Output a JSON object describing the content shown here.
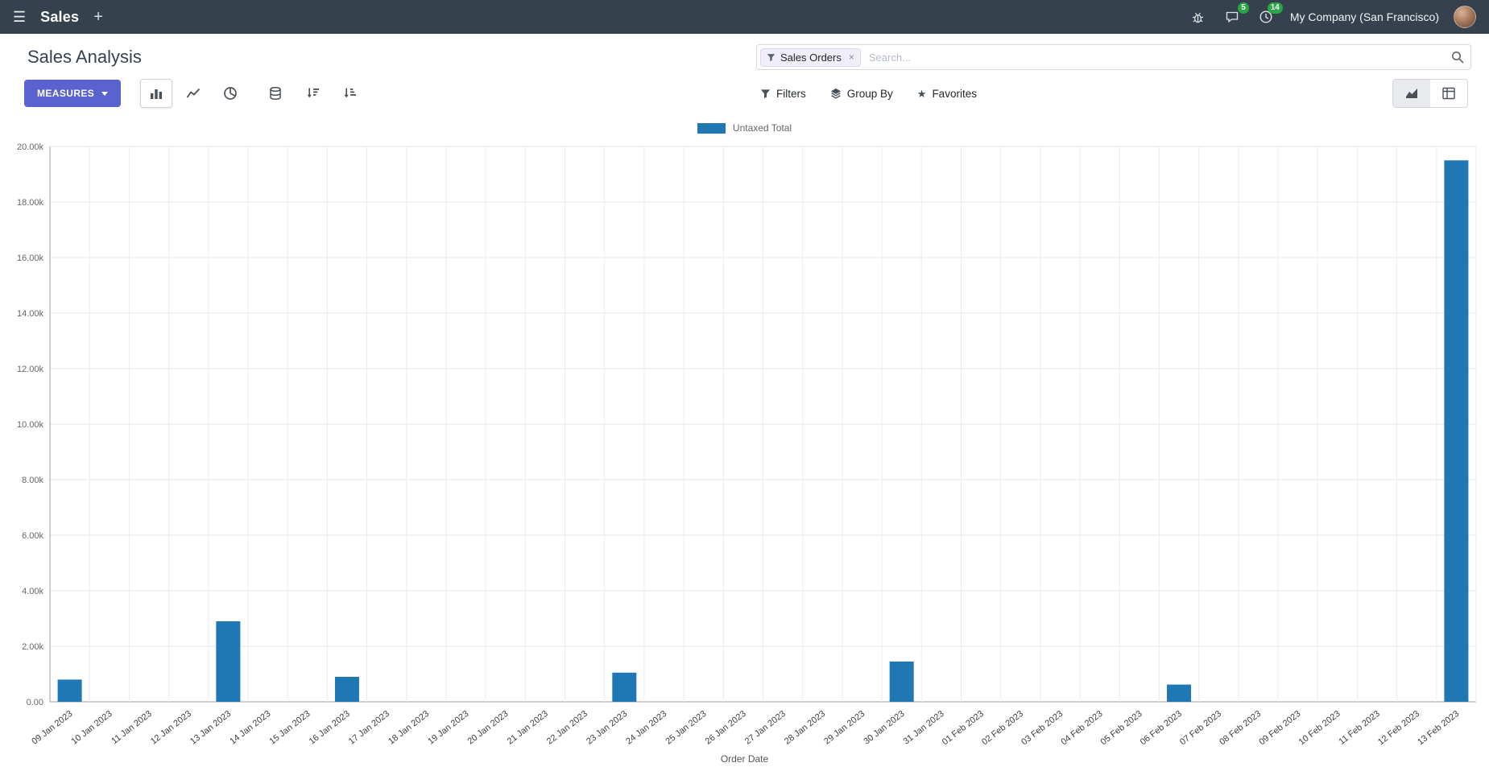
{
  "icons": {
    "hamburger": "☰",
    "plus": "+",
    "star": "★",
    "facet_close": "×"
  },
  "colors": {
    "navbar_bg": "#35424d",
    "accent": "#5a62cf",
    "badge_green": "#28a745",
    "bar": "#1f77b4"
  },
  "navbar": {
    "app_name": "Sales",
    "messages_count": "5",
    "activities_count": "14",
    "company": "My Company (San Francisco)"
  },
  "control_panel": {
    "title": "Sales Analysis",
    "measures_label": "MEASURES",
    "search": {
      "facet": "Sales Orders",
      "placeholder": "Search..."
    },
    "filters_label": "Filters",
    "group_by_label": "Group By",
    "favorites_label": "Favorites"
  },
  "chart_data": {
    "type": "bar",
    "title": "",
    "xlabel": "Order Date",
    "ylabel": "",
    "ylim": [
      0,
      20000
    ],
    "ytick_step": 2000,
    "ytick_labels": [
      "0.00",
      "2.00k",
      "4.00k",
      "6.00k",
      "8.00k",
      "10.00k",
      "12.00k",
      "14.00k",
      "16.00k",
      "18.00k",
      "20.00k"
    ],
    "grid": true,
    "legend_position": "top",
    "categories": [
      "09 Jan 2023",
      "10 Jan 2023",
      "11 Jan 2023",
      "12 Jan 2023",
      "13 Jan 2023",
      "14 Jan 2023",
      "15 Jan 2023",
      "16 Jan 2023",
      "17 Jan 2023",
      "18 Jan 2023",
      "19 Jan 2023",
      "20 Jan 2023",
      "21 Jan 2023",
      "22 Jan 2023",
      "23 Jan 2023",
      "24 Jan 2023",
      "25 Jan 2023",
      "26 Jan 2023",
      "27 Jan 2023",
      "28 Jan 2023",
      "29 Jan 2023",
      "30 Jan 2023",
      "31 Jan 2023",
      "01 Feb 2023",
      "02 Feb 2023",
      "03 Feb 2023",
      "04 Feb 2023",
      "05 Feb 2023",
      "06 Feb 2023",
      "07 Feb 2023",
      "08 Feb 2023",
      "09 Feb 2023",
      "10 Feb 2023",
      "11 Feb 2023",
      "12 Feb 2023",
      "13 Feb 2023"
    ],
    "series": [
      {
        "name": "Untaxed Total",
        "color": "#1f77b4",
        "values": [
          800,
          0,
          0,
          0,
          2900,
          0,
          0,
          900,
          0,
          0,
          0,
          0,
          0,
          0,
          1050,
          0,
          0,
          0,
          0,
          0,
          0,
          1450,
          0,
          0,
          0,
          0,
          0,
          0,
          620,
          0,
          0,
          0,
          0,
          0,
          0,
          19500
        ]
      }
    ]
  }
}
